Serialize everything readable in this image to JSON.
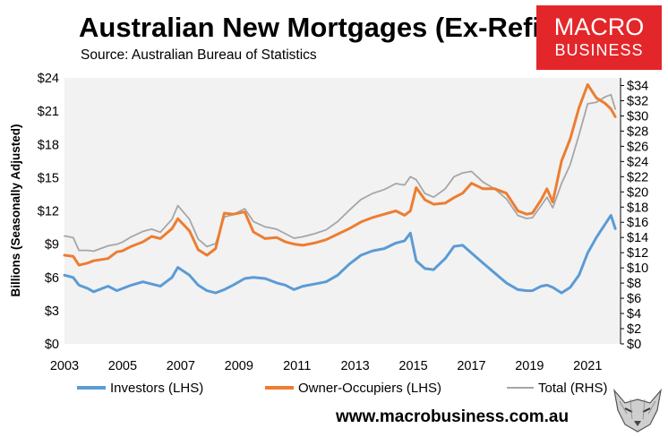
{
  "header": {
    "title": "Australian New Mortgages (Ex-Refi)",
    "source": "Source: Australian Bureau of Statistics"
  },
  "logo": {
    "line1": "MACRO",
    "line2": "BUSINESS",
    "color": "#e3262a"
  },
  "footer": {
    "website": "www.macrobusiness.com.au"
  },
  "colors": {
    "plot_bg": "#f2f2f2",
    "investors": "#5b9bd5",
    "owner_occupiers": "#ed7d31",
    "total": "#a6a6a6"
  },
  "chart_data": {
    "type": "line",
    "title": "Australian New Mortgages (Ex-Refi)",
    "ylabel": "Billions (Seasonally Adjusted)",
    "ylim": [
      0,
      24
    ],
    "y2lim": [
      0,
      35
    ],
    "xlim": [
      2003,
      2022.1
    ],
    "yticks": [
      "$0",
      "$3",
      "$6",
      "$9",
      "$12",
      "$15",
      "$18",
      "$21",
      "$24"
    ],
    "y2ticks": [
      "$0",
      "$2",
      "$4",
      "$6",
      "$8",
      "$10",
      "$12",
      "$14",
      "$16",
      "$18",
      "$20",
      "$22",
      "$24",
      "$26",
      "$28",
      "$30",
      "$32",
      "$34"
    ],
    "xticks": [
      "2003",
      "2005",
      "2007",
      "2009",
      "2011",
      "2013",
      "2015",
      "2017",
      "2019",
      "2021"
    ],
    "grid": false,
    "legend_position": "bottom",
    "series": [
      {
        "name": "Investors (LHS)",
        "axis": "left",
        "color": "#5b9bd5",
        "x": [
          2003,
          2003.3,
          2003.5,
          2003.8,
          2004,
          2004.5,
          2004.8,
          2005,
          2005.3,
          2005.7,
          2006,
          2006.3,
          2006.7,
          2006.9,
          2007.3,
          2007.6,
          2007.9,
          2008.2,
          2008.5,
          2008.8,
          2009.2,
          2009.5,
          2009.9,
          2010.3,
          2010.6,
          2010.9,
          2011.2,
          2011.6,
          2012,
          2012.4,
          2012.8,
          2013.2,
          2013.6,
          2014,
          2014.4,
          2014.7,
          2014.9,
          2015.1,
          2015.4,
          2015.7,
          2016.1,
          2016.4,
          2016.7,
          2017,
          2017.4,
          2017.8,
          2018.2,
          2018.6,
          2018.9,
          2019.1,
          2019.4,
          2019.6,
          2019.8,
          2020.1,
          2020.4,
          2020.7,
          2021,
          2021.3,
          2021.6,
          2021.8,
          2021.95
        ],
        "values": [
          6.2,
          6.0,
          5.3,
          5.0,
          4.7,
          5.2,
          4.8,
          5.0,
          5.3,
          5.6,
          5.4,
          5.2,
          6.0,
          6.9,
          6.2,
          5.3,
          4.8,
          4.6,
          4.9,
          5.3,
          5.9,
          6.0,
          5.9,
          5.5,
          5.3,
          4.9,
          5.2,
          5.4,
          5.6,
          6.2,
          7.2,
          8.0,
          8.4,
          8.6,
          9.1,
          9.3,
          10.0,
          7.5,
          6.8,
          6.7,
          7.7,
          8.8,
          8.9,
          8.2,
          7.3,
          6.4,
          5.5,
          4.9,
          4.8,
          4.8,
          5.2,
          5.3,
          5.1,
          4.6,
          5.1,
          6.2,
          8.2,
          9.6,
          10.8,
          11.6,
          10.4
        ]
      },
      {
        "name": "Owner-Occupiers (LHS)",
        "axis": "left",
        "color": "#ed7d31",
        "x": [
          2003,
          2003.3,
          2003.5,
          2003.8,
          2004,
          2004.5,
          2004.8,
          2005,
          2005.3,
          2005.7,
          2006,
          2006.3,
          2006.7,
          2006.9,
          2007.3,
          2007.6,
          2007.9,
          2008.2,
          2008.5,
          2008.8,
          2009.2,
          2009.5,
          2009.9,
          2010.3,
          2010.6,
          2010.9,
          2011.2,
          2011.6,
          2012,
          2012.4,
          2012.8,
          2013.2,
          2013.6,
          2014,
          2014.4,
          2014.7,
          2014.9,
          2015.1,
          2015.4,
          2015.7,
          2016.1,
          2016.4,
          2016.7,
          2017,
          2017.4,
          2017.8,
          2018.2,
          2018.6,
          2018.9,
          2019.1,
          2019.4,
          2019.6,
          2019.8,
          2020.1,
          2020.4,
          2020.7,
          2021,
          2021.3,
          2021.6,
          2021.8,
          2021.95
        ],
        "values": [
          8.0,
          7.9,
          7.1,
          7.3,
          7.5,
          7.7,
          8.3,
          8.4,
          8.8,
          9.2,
          9.7,
          9.5,
          10.4,
          11.3,
          10.2,
          8.5,
          8.0,
          8.6,
          11.8,
          11.7,
          11.9,
          10.1,
          9.5,
          9.6,
          9.2,
          9.0,
          8.9,
          9.1,
          9.4,
          9.9,
          10.4,
          11.0,
          11.4,
          11.7,
          12.0,
          11.6,
          12.0,
          14.1,
          13.0,
          12.6,
          12.7,
          13.2,
          13.6,
          14.5,
          14.0,
          14.0,
          13.6,
          12.0,
          11.7,
          11.8,
          13.0,
          14.0,
          12.8,
          16.5,
          18.5,
          21.3,
          23.4,
          22.2,
          21.7,
          21.2,
          20.5
        ]
      },
      {
        "name": "Total (RHS)",
        "axis": "right",
        "color": "#a6a6a6",
        "x": [
          2003,
          2003.3,
          2003.5,
          2003.8,
          2004,
          2004.5,
          2004.8,
          2005,
          2005.3,
          2005.7,
          2006,
          2006.3,
          2006.7,
          2006.9,
          2007.3,
          2007.6,
          2007.9,
          2008.2,
          2008.5,
          2008.8,
          2009.2,
          2009.5,
          2009.9,
          2010.3,
          2010.6,
          2010.9,
          2011.2,
          2011.6,
          2012,
          2012.4,
          2012.8,
          2013.2,
          2013.6,
          2014,
          2014.4,
          2014.7,
          2014.9,
          2015.1,
          2015.4,
          2015.7,
          2016.1,
          2016.4,
          2016.7,
          2017,
          2017.4,
          2017.8,
          2018.2,
          2018.6,
          2018.9,
          2019.1,
          2019.4,
          2019.6,
          2019.8,
          2020.1,
          2020.4,
          2020.7,
          2021,
          2021.3,
          2021.6,
          2021.8,
          2021.95
        ],
        "values": [
          14.2,
          14.0,
          12.3,
          12.3,
          12.2,
          12.9,
          13.1,
          13.4,
          14.1,
          14.8,
          15.1,
          14.7,
          16.4,
          18.2,
          16.4,
          13.8,
          12.8,
          13.2,
          16.7,
          17.0,
          17.8,
          16.1,
          15.4,
          15.1,
          14.5,
          13.9,
          14.1,
          14.5,
          15.0,
          16.1,
          17.6,
          19.0,
          19.8,
          20.3,
          21.1,
          20.9,
          22.0,
          21.6,
          19.8,
          19.3,
          20.4,
          22.0,
          22.5,
          22.7,
          21.3,
          20.4,
          19.1,
          16.9,
          16.5,
          16.6,
          18.2,
          19.3,
          17.9,
          21.1,
          23.6,
          27.5,
          31.6,
          31.8,
          32.5,
          32.8,
          30.9
        ]
      }
    ]
  }
}
